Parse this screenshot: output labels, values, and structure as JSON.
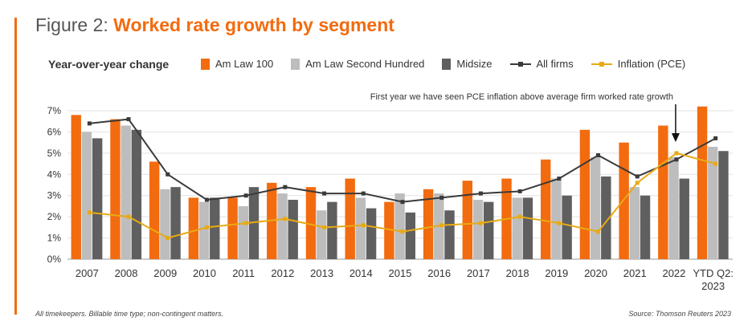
{
  "title": {
    "prefix": "Figure 2: ",
    "main": "Worked rate growth by segment"
  },
  "footnote": "All timekeepers. Billable time type; non-contingent matters.",
  "source": "Source: Thomson Reuters 2023",
  "chart_data": {
    "type": "bar",
    "ylabel": "Year-over-year change",
    "ylim": [
      0,
      7
    ],
    "yticks": [
      "0%",
      "1%",
      "2%",
      "3%",
      "4%",
      "5%",
      "6%",
      "7%"
    ],
    "grid": true,
    "legend_position": "top",
    "categories": [
      "2007",
      "2008",
      "2009",
      "2010",
      "2011",
      "2012",
      "2013",
      "2014",
      "2015",
      "2016",
      "2017",
      "2018",
      "2019",
      "2020",
      "2021",
      "2022",
      [
        "YTD Q2:",
        "2023"
      ]
    ],
    "bar_series": [
      {
        "name": "Am Law 100",
        "color": "#f26b0f",
        "values": [
          6.8,
          6.6,
          4.6,
          2.9,
          2.9,
          3.6,
          3.4,
          3.8,
          2.7,
          3.3,
          3.7,
          3.8,
          4.7,
          6.1,
          5.5,
          6.3,
          7.2
        ]
      },
      {
        "name": "Am Law Second Hundred",
        "color": "#bdbdbd",
        "values": [
          6.0,
          6.3,
          3.3,
          2.7,
          2.5,
          3.1,
          2.3,
          2.9,
          3.1,
          3.1,
          2.8,
          2.9,
          3.8,
          4.8,
          3.4,
          4.8,
          5.3
        ]
      },
      {
        "name": "Midsize",
        "color": "#5f5f5f",
        "values": [
          5.7,
          6.1,
          3.4,
          2.9,
          3.4,
          2.8,
          2.7,
          2.4,
          2.2,
          2.3,
          2.7,
          2.9,
          3.0,
          3.9,
          3.0,
          3.8,
          5.1
        ]
      }
    ],
    "line_series": [
      {
        "name": "All firms",
        "color": "#3a3a3a",
        "values": [
          6.4,
          6.6,
          4.0,
          2.8,
          3.0,
          3.4,
          3.1,
          3.1,
          2.7,
          2.9,
          3.1,
          3.2,
          3.8,
          4.9,
          3.9,
          4.7,
          5.7
        ]
      },
      {
        "name": "Inflation (PCE)",
        "color": "#e8aa14",
        "values": [
          2.2,
          2.0,
          1.0,
          1.5,
          1.7,
          1.9,
          1.5,
          1.6,
          1.3,
          1.6,
          1.7,
          2.0,
          1.7,
          1.3,
          3.6,
          5.0,
          4.5
        ]
      }
    ],
    "annotation": {
      "text": "First year we have seen PCE inflation above average firm worked rate growth",
      "category_index": 15
    }
  }
}
